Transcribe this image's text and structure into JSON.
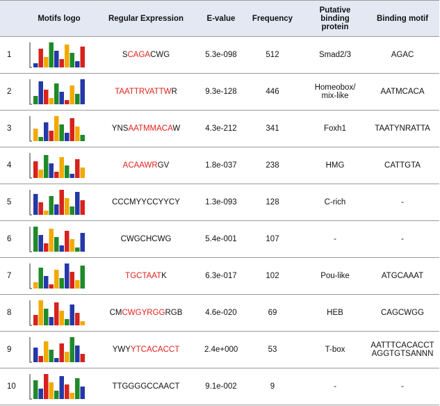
{
  "table": {
    "header": [
      "Motifs logo",
      "Regular Expression",
      "E-value",
      "Frequency",
      "Putative binding protein",
      "Binding motif"
    ],
    "rows": [
      {
        "number": 1,
        "regex": [
          {
            "text": "S"
          },
          {
            "text": "CAGA",
            "highlight": true
          },
          {
            "text": "CWG"
          }
        ],
        "evalue": "5.3e-098",
        "frequency": 512,
        "protein": "Smad2/3",
        "motif": "AGAC"
      },
      {
        "number": 2,
        "regex": [
          {
            "text": "TAATTRVATTW",
            "highlight": true
          },
          {
            "text": "R"
          }
        ],
        "evalue": "9.3e-128",
        "frequency": 446,
        "protein": "Homeobox/ mix-like",
        "motif": "AATMCACA"
      },
      {
        "number": 3,
        "regex": [
          {
            "text": "YNS"
          },
          {
            "text": "AATMMACA",
            "highlight": true
          },
          {
            "text": "W"
          }
        ],
        "evalue": "4.3e-212",
        "frequency": 341,
        "protein": "Foxh1",
        "motif": "TAATYNRATTA"
      },
      {
        "number": 4,
        "regex": [
          {
            "text": "ACAAWR",
            "highlight": true
          },
          {
            "text": "GV"
          }
        ],
        "evalue": "1.8e-037",
        "frequency": 238,
        "protein": "HMG",
        "motif": "CATTGTA"
      },
      {
        "number": 5,
        "regex": [
          {
            "text": "CCCMYYCCYYCY"
          }
        ],
        "evalue": "1.3e-093",
        "frequency": 128,
        "protein": "C-rich",
        "motif": "-"
      },
      {
        "number": 6,
        "regex": [
          {
            "text": "CWGCHCWG"
          }
        ],
        "evalue": "5.4e-001",
        "frequency": 107,
        "protein": "-",
        "motif": "-"
      },
      {
        "number": 7,
        "regex": [
          {
            "text": "TGCTAAT",
            "highlight": true
          },
          {
            "text": "K"
          }
        ],
        "evalue": "6.3e-017",
        "frequency": 102,
        "protein": "Pou-like",
        "motif": "ATGCAAAT"
      },
      {
        "number": 8,
        "regex": [
          {
            "text": "CM"
          },
          {
            "text": "CWGYRGG",
            "highlight": true
          },
          {
            "text": "RGB"
          }
        ],
        "evalue": "4.6e-020",
        "frequency": 69,
        "protein": "HEB",
        "motif": "CAGCWGG"
      },
      {
        "number": 9,
        "regex": [
          {
            "text": "YWY"
          },
          {
            "text": "YTCACACCT",
            "highlight": true
          }
        ],
        "evalue": "2.4e+000",
        "frequency": 53,
        "protein": "T-box",
        "motif": "AATTTCACACCT AGGTGTSANNN"
      },
      {
        "number": 10,
        "regex": [
          {
            "text": "TTGGGGCCAACT"
          }
        ],
        "evalue": "9.1e-002",
        "frequency": 9,
        "protein": "-",
        "motif": "-"
      }
    ]
  }
}
